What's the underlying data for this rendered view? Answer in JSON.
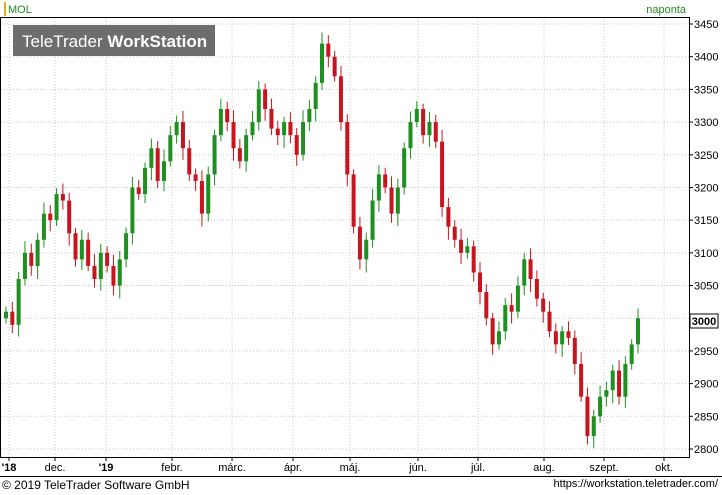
{
  "symbol": "MOL",
  "period_label": "naponta",
  "watermark": "TeleTrader WorkStation",
  "watermark_parts": [
    "TeleTrader ",
    "WorkStation"
  ],
  "footer": {
    "copyright": "© 2019 TeleTrader Software GmbH",
    "url": "https://workstation.teletrader.com/"
  },
  "colors": {
    "up": "#1f8f1f",
    "down": "#c8141e",
    "grid": "#c8c8c8",
    "symbol": "#228b22",
    "period": "#228b22"
  },
  "chart_data": {
    "type": "candlestick",
    "title": "MOL",
    "ylim": [
      2790,
      3460
    ],
    "y_ticks": [
      2800,
      2850,
      2900,
      2950,
      3000,
      3050,
      3100,
      3150,
      3200,
      3250,
      3300,
      3350,
      3400,
      3450
    ],
    "last_value_label": "3000",
    "x_ticks": [
      "'18",
      "dec.",
      "'19",
      "febr.",
      "márc.",
      "ápr.",
      "máj.",
      "jún.",
      "júl.",
      "aug.",
      "szept.",
      "okt."
    ],
    "grid": true,
    "series": [
      {
        "close": [
          3010,
          2990,
          3060,
          3100,
          3080,
          3120,
          3160,
          3150,
          3190,
          3180,
          3130,
          3090,
          3120,
          3080,
          3060,
          3100,
          3080,
          3050,
          3090,
          3130,
          3200,
          3190,
          3230,
          3260,
          3210,
          3240,
          3280,
          3300,
          3260,
          3220,
          3210,
          3160,
          3220,
          3280,
          3320,
          3300,
          3260,
          3240,
          3280,
          3300,
          3350,
          3320,
          3290,
          3280,
          3300,
          3280,
          3250,
          3300,
          3320,
          3360,
          3420,
          3400,
          3370,
          3300,
          3220,
          3140,
          3090,
          3120,
          3180,
          3220,
          3200,
          3160,
          3200,
          3260,
          3300,
          3320,
          3280,
          3300,
          3270,
          3170,
          3140,
          3120,
          3100,
          3110,
          3070,
          3040,
          3000,
          2960,
          2980,
          3020,
          3010,
          3050,
          3090,
          3060,
          3030,
          3010,
          2980,
          2960,
          2980,
          2970,
          2930,
          2880,
          2820,
          2850,
          2880,
          2890,
          2920,
          2880,
          2930,
          2960,
          3000
        ]
      }
    ]
  }
}
